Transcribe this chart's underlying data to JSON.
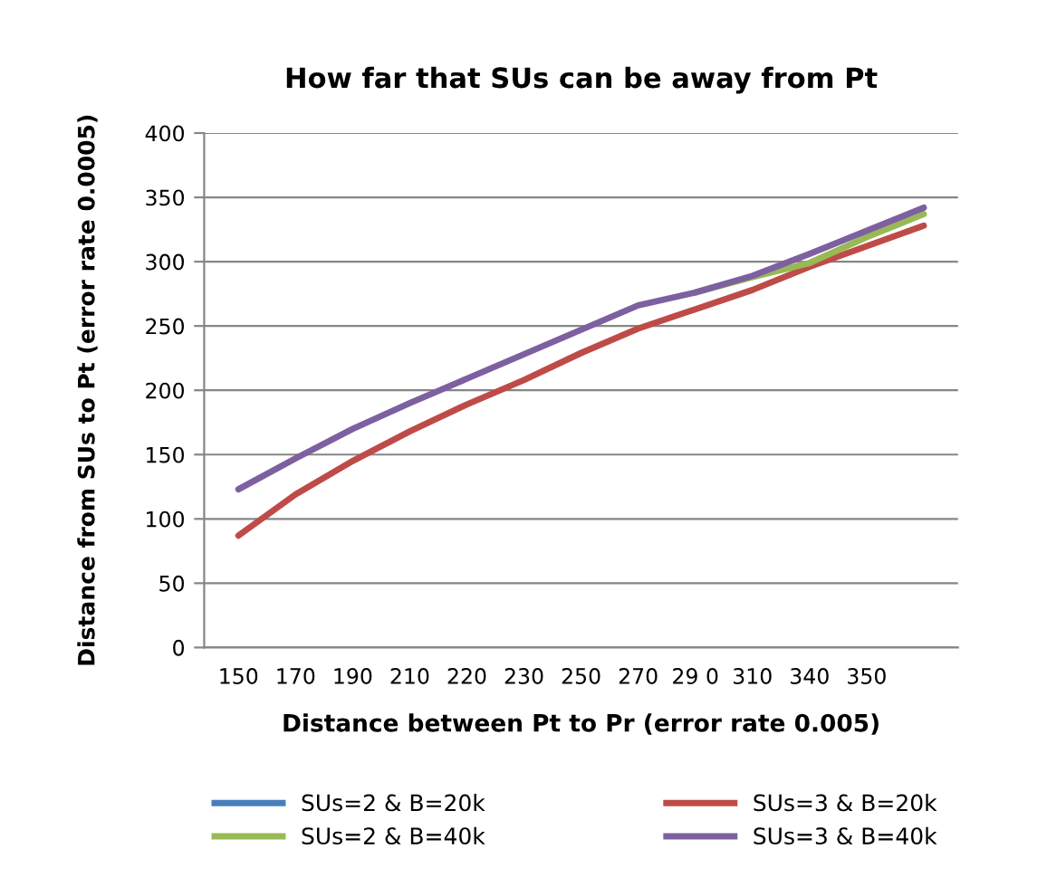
{
  "chart_data": {
    "type": "line",
    "title": "How far that SUs can be away from Pt",
    "xlabel": "Distance between Pt to Pr (error rate 0.005)",
    "ylabel": "Distance from SUs to Pt (error rate 0.0005)",
    "categories": [
      "150",
      "170",
      "190",
      "210",
      "220",
      "230",
      "250",
      "270",
      "29 0",
      "310",
      "340",
      "350",
      null
    ],
    "series": [
      {
        "name": "SUs=2 & B=20k",
        "color": "#4a7ebb",
        "values": [
          null,
          null,
          null,
          null,
          null,
          null,
          null,
          null,
          null,
          null,
          null,
          null,
          null
        ]
      },
      {
        "name": "SUs=3 & B=20k",
        "color": "#be4b48",
        "values": [
          87,
          119,
          145,
          168,
          189,
          208,
          229,
          248,
          263,
          278,
          296,
          312,
          328
        ]
      },
      {
        "name": "SUs=2 & B=40k",
        "color": "#98b954",
        "values": [
          null,
          null,
          null,
          null,
          null,
          null,
          null,
          null,
          276,
          288,
          299,
          319,
          337
        ]
      },
      {
        "name": "SUs=3 & B=40k",
        "color": "#7d60a0",
        "values": [
          123,
          147,
          170,
          190,
          209,
          228,
          247,
          266,
          276,
          289,
          306,
          324,
          342
        ]
      }
    ],
    "ylim": [
      0,
      400
    ],
    "yticks": [
      0,
      50,
      100,
      150,
      200,
      250,
      300,
      350,
      400
    ],
    "grid": "y",
    "legend": "bottom",
    "marker": "none",
    "line_style": "solid"
  }
}
